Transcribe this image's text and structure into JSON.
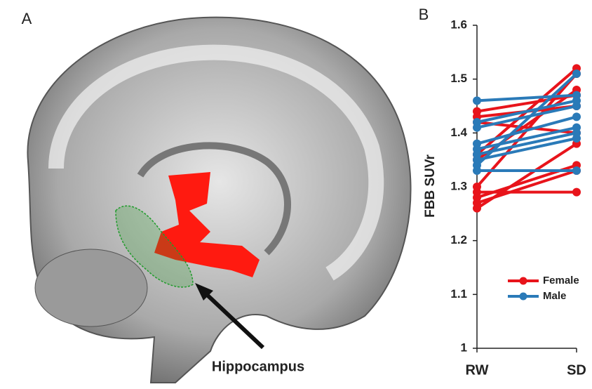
{
  "panel_a": {
    "label": "A",
    "annotation": "Hippocampus"
  },
  "chart_data": {
    "type": "slope",
    "panel_label": "B",
    "y_label": "FBB SUVr",
    "categories": [
      "RW",
      "SD"
    ],
    "ylim": [
      1,
      1.6
    ],
    "yticks": [
      1,
      1.1,
      1.2,
      1.3,
      1.4,
      1.5,
      1.6
    ],
    "legend": "lower right",
    "series": [
      {
        "name": "Female",
        "color": "#e8141b",
        "values": [
          [
            1.26,
            1.38
          ],
          [
            1.27,
            1.33
          ],
          [
            1.28,
            1.34
          ],
          [
            1.29,
            1.29
          ],
          [
            1.3,
            1.51
          ],
          [
            1.35,
            1.48
          ],
          [
            1.36,
            1.52
          ],
          [
            1.42,
            1.4
          ],
          [
            1.43,
            1.45
          ],
          [
            1.44,
            1.47
          ]
        ]
      },
      {
        "name": "Male",
        "color": "#2a7ab8",
        "values": [
          [
            1.46,
            1.47
          ],
          [
            1.42,
            1.46
          ],
          [
            1.41,
            1.45
          ],
          [
            1.38,
            1.43
          ],
          [
            1.37,
            1.41
          ],
          [
            1.36,
            1.4
          ],
          [
            1.35,
            1.39
          ],
          [
            1.34,
            1.51
          ],
          [
            1.33,
            1.33
          ]
        ]
      }
    ]
  }
}
